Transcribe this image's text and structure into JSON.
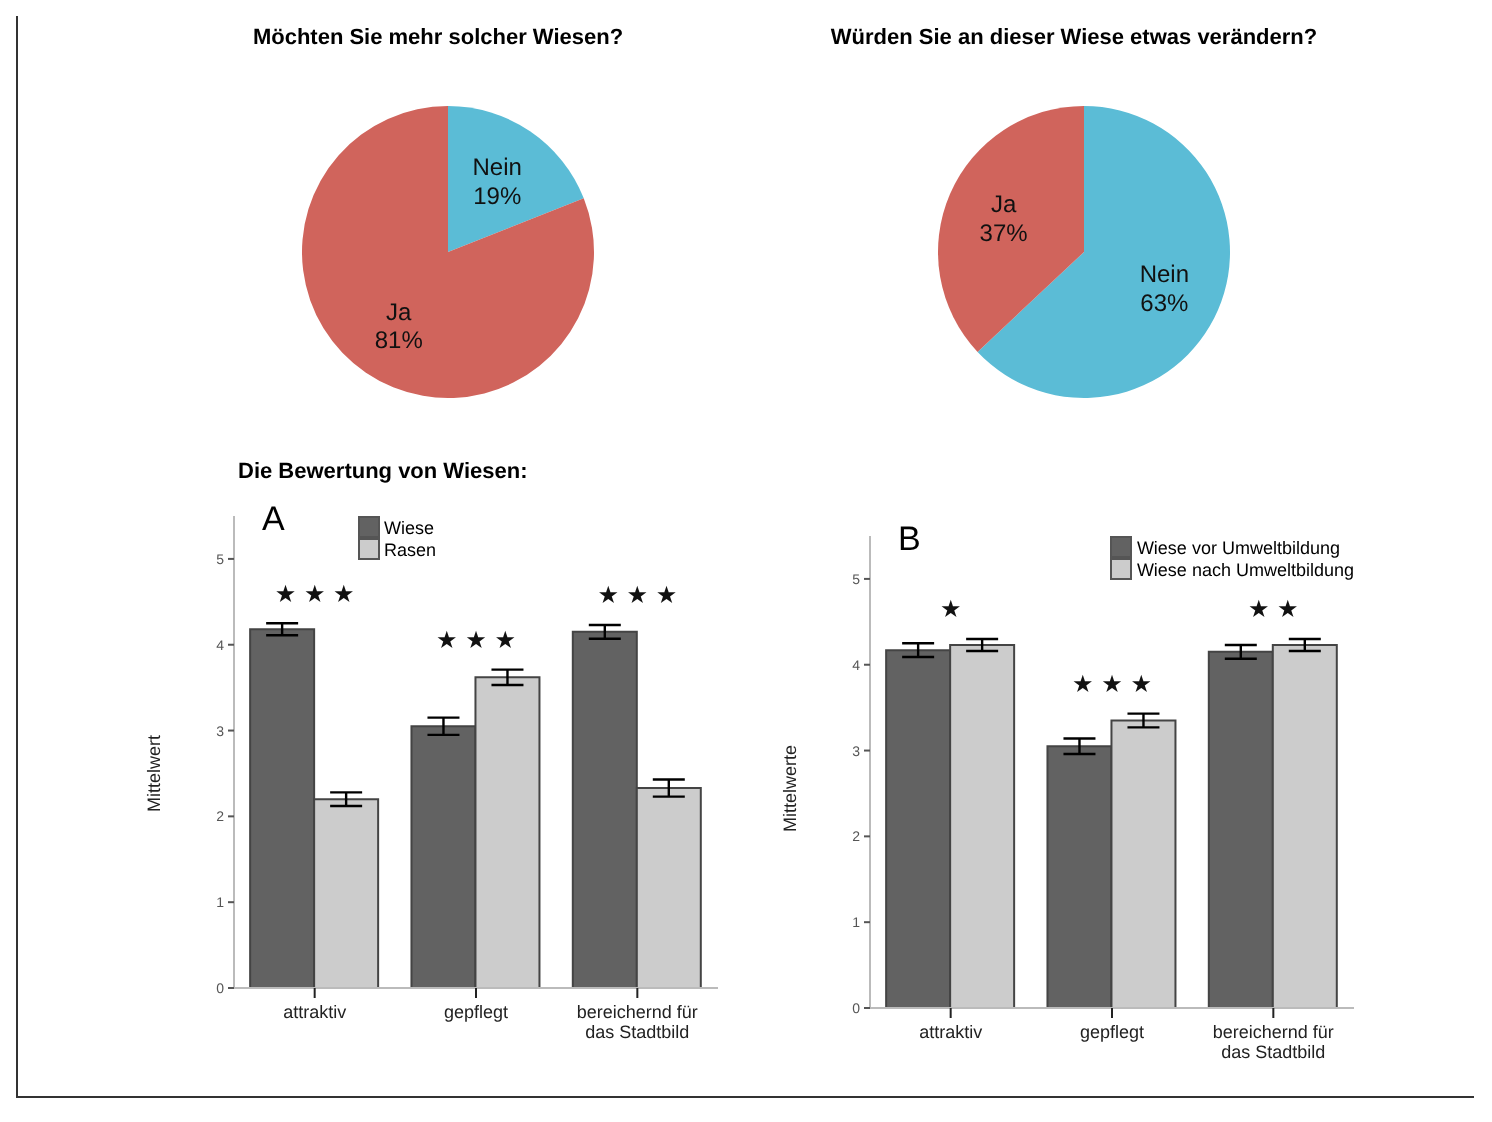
{
  "chart_data": [
    {
      "type": "pie",
      "title": "Möchten Sie mehr solcher Wiesen?",
      "categories": [
        "Nein",
        "Ja"
      ],
      "values": [
        19,
        81
      ],
      "value_labels": [
        "19%",
        "81%"
      ],
      "colors": [
        "#5bbcd6",
        "#d0645c"
      ]
    },
    {
      "type": "pie",
      "title": "Würden Sie an dieser Wiese etwas verändern?",
      "categories": [
        "Nein",
        "Ja"
      ],
      "values": [
        63,
        37
      ],
      "value_labels": [
        "63%",
        "37%"
      ],
      "colors": [
        "#5bbcd6",
        "#d0645c"
      ]
    },
    {
      "type": "bar",
      "title": "Die Bewertung von Wiesen:",
      "ylabel": "Mittelwert",
      "categories": [
        "attraktiv",
        "gepflegt",
        "bereichernd für das Stadtbild"
      ],
      "ylim": [
        0,
        5.5
      ],
      "yticks": [
        0,
        1,
        2,
        3,
        4,
        5
      ],
      "legend": "top",
      "series": [
        {
          "name": "Wiese",
          "color": "#626262",
          "values": [
            4.18,
            3.05,
            4.15
          ],
          "errors": [
            0.07,
            0.1,
            0.08
          ]
        },
        {
          "name": "Rasen",
          "color": "#cccccc",
          "values": [
            2.2,
            3.62,
            2.33
          ],
          "errors": [
            0.08,
            0.09,
            0.1
          ]
        }
      ],
      "annotations": [
        "A",
        "★ ★ ★",
        "★ ★ ★",
        "★ ★ ★"
      ]
    },
    {
      "type": "bar",
      "ylabel": "Mittelwerte",
      "categories": [
        "attraktiv",
        "gepflegt",
        "bereichernd für das Stadtbild"
      ],
      "ylim": [
        0,
        5.5
      ],
      "yticks": [
        0,
        1,
        2,
        3,
        4,
        5
      ],
      "legend": "top right",
      "series": [
        {
          "name": "Wiese vor Umweltbildung",
          "color": "#626262",
          "values": [
            4.17,
            3.05,
            4.15
          ],
          "errors": [
            0.08,
            0.09,
            0.08
          ]
        },
        {
          "name": "Wiese nach Umweltbildung",
          "color": "#cccccc",
          "values": [
            4.23,
            3.35,
            4.23
          ],
          "errors": [
            0.07,
            0.08,
            0.07
          ]
        }
      ],
      "annotations": [
        "B",
        "★",
        "★ ★ ★",
        "★ ★"
      ]
    }
  ]
}
